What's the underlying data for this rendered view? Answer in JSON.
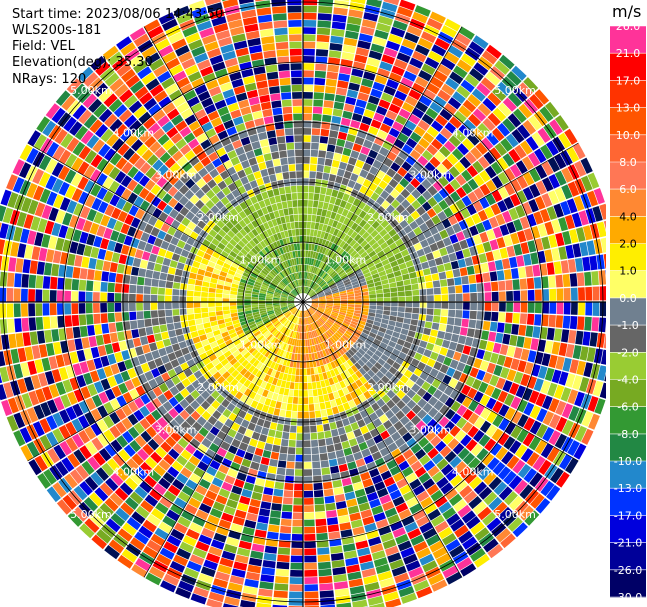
{
  "header": {
    "start_time": "Start time: 2023/08/06 14:43:50",
    "instrument": "WLS200s-181",
    "field": "Field: VEL",
    "elevation": "Elevation(deg): 35.30",
    "nrays": "NRays: 120"
  },
  "chart_data": {
    "type": "heatmap",
    "projection": "polar-ppi",
    "field": "VEL",
    "n_rays": 120,
    "range_rings_km": [
      1.0,
      2.0,
      3.0,
      4.0,
      5.0
    ],
    "range_ring_labels": [
      "1.00km",
      "2.00km",
      "3.00km",
      "4.00km",
      "5.00km"
    ],
    "max_range_km": 5.3,
    "colorbar": {
      "unit": "m/s",
      "ticks": [
        "26.0",
        "21.0",
        "17.0",
        "13.0",
        "10.0",
        "8.0",
        "6.0",
        "4.0",
        "2.0",
        "1.0",
        "0.0",
        "-1.0",
        "-2.0",
        "-4.0",
        "-6.0",
        "-8.0",
        "-10.0",
        "-13.0",
        "-17.0",
        "-21.0",
        "-26.0",
        "-30.0"
      ],
      "colors": [
        "#ff3399",
        "#ff0000",
        "#ff3300",
        "#ff5500",
        "#ff6633",
        "#ff7755",
        "#ff8833",
        "#ffaa00",
        "#ffee00",
        "#ffff66",
        "#708090",
        "#666666",
        "#99cc33",
        "#77aa22",
        "#339933",
        "#228844",
        "#2288cc",
        "#0033ff",
        "#0000dd",
        "#000099",
        "#000066",
        "#001155"
      ]
    }
  }
}
